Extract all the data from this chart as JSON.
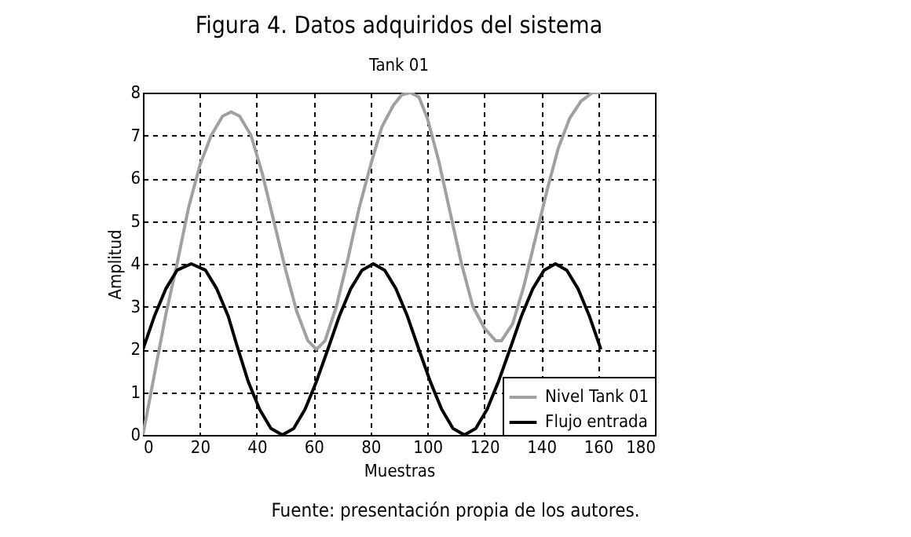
{
  "chart_data": {
    "type": "line",
    "title": "Figura 4. Datos adquiridos del sistema",
    "subtitle": "Tank 01",
    "xlabel": "Muestras",
    "ylabel": "Amplitud",
    "xlim": [
      0,
      180
    ],
    "xticks": [
      0,
      20,
      40,
      60,
      80,
      100,
      120,
      140,
      160,
      180
    ],
    "ylim": [
      0,
      8
    ],
    "yticks": [
      0,
      1,
      2,
      3,
      4,
      5,
      6,
      7,
      8
    ],
    "grid": true,
    "legend": "bottom right",
    "annotations": [
      "Fuente: presentación propia de los autores."
    ],
    "series": [
      {
        "name": "Nivel Tank 01",
        "color": "#a0a0a0",
        "x": [
          0,
          4,
          8,
          12,
          16,
          20,
          24,
          28,
          31,
          34,
          38,
          42,
          46,
          50,
          54,
          58,
          61,
          64,
          68,
          72,
          76,
          80,
          84,
          88,
          91,
          94,
          97,
          100,
          104,
          108,
          112,
          116,
          120,
          124,
          126,
          130,
          134,
          138,
          142,
          146,
          150,
          154,
          158,
          161
        ],
        "values": [
          0,
          1.4,
          2.8,
          4.0,
          5.3,
          6.3,
          7.0,
          7.45,
          7.55,
          7.45,
          7.0,
          6.1,
          5.0,
          3.9,
          2.9,
          2.2,
          2.0,
          2.2,
          3.0,
          4.1,
          5.3,
          6.3,
          7.2,
          7.7,
          7.95,
          8.0,
          7.9,
          7.4,
          6.4,
          5.2,
          4.0,
          3.0,
          2.5,
          2.2,
          2.2,
          2.6,
          3.5,
          4.6,
          5.7,
          6.7,
          7.4,
          7.8,
          8.0,
          8.0
        ]
      },
      {
        "name": "Flujo entrada",
        "color": "#000000",
        "x": [
          0,
          4,
          8,
          12,
          17,
          22,
          26,
          30,
          33,
          37,
          41,
          45,
          49,
          53,
          57,
          61,
          65,
          69,
          73,
          77,
          81,
          85,
          89,
          93,
          97,
          101,
          105,
          109,
          113,
          117,
          121,
          125,
          129,
          133,
          137,
          141,
          145,
          149,
          153,
          157,
          161
        ],
        "values": [
          2,
          2.77,
          3.41,
          3.85,
          4,
          3.85,
          3.41,
          2.77,
          2.1,
          1.25,
          0.6,
          0.15,
          0,
          0.15,
          0.6,
          1.25,
          2.0,
          2.77,
          3.41,
          3.85,
          4,
          3.85,
          3.41,
          2.77,
          2.0,
          1.25,
          0.6,
          0.15,
          0,
          0.15,
          0.6,
          1.25,
          2.0,
          2.77,
          3.41,
          3.85,
          4,
          3.85,
          3.41,
          2.77,
          2.0
        ]
      }
    ]
  }
}
